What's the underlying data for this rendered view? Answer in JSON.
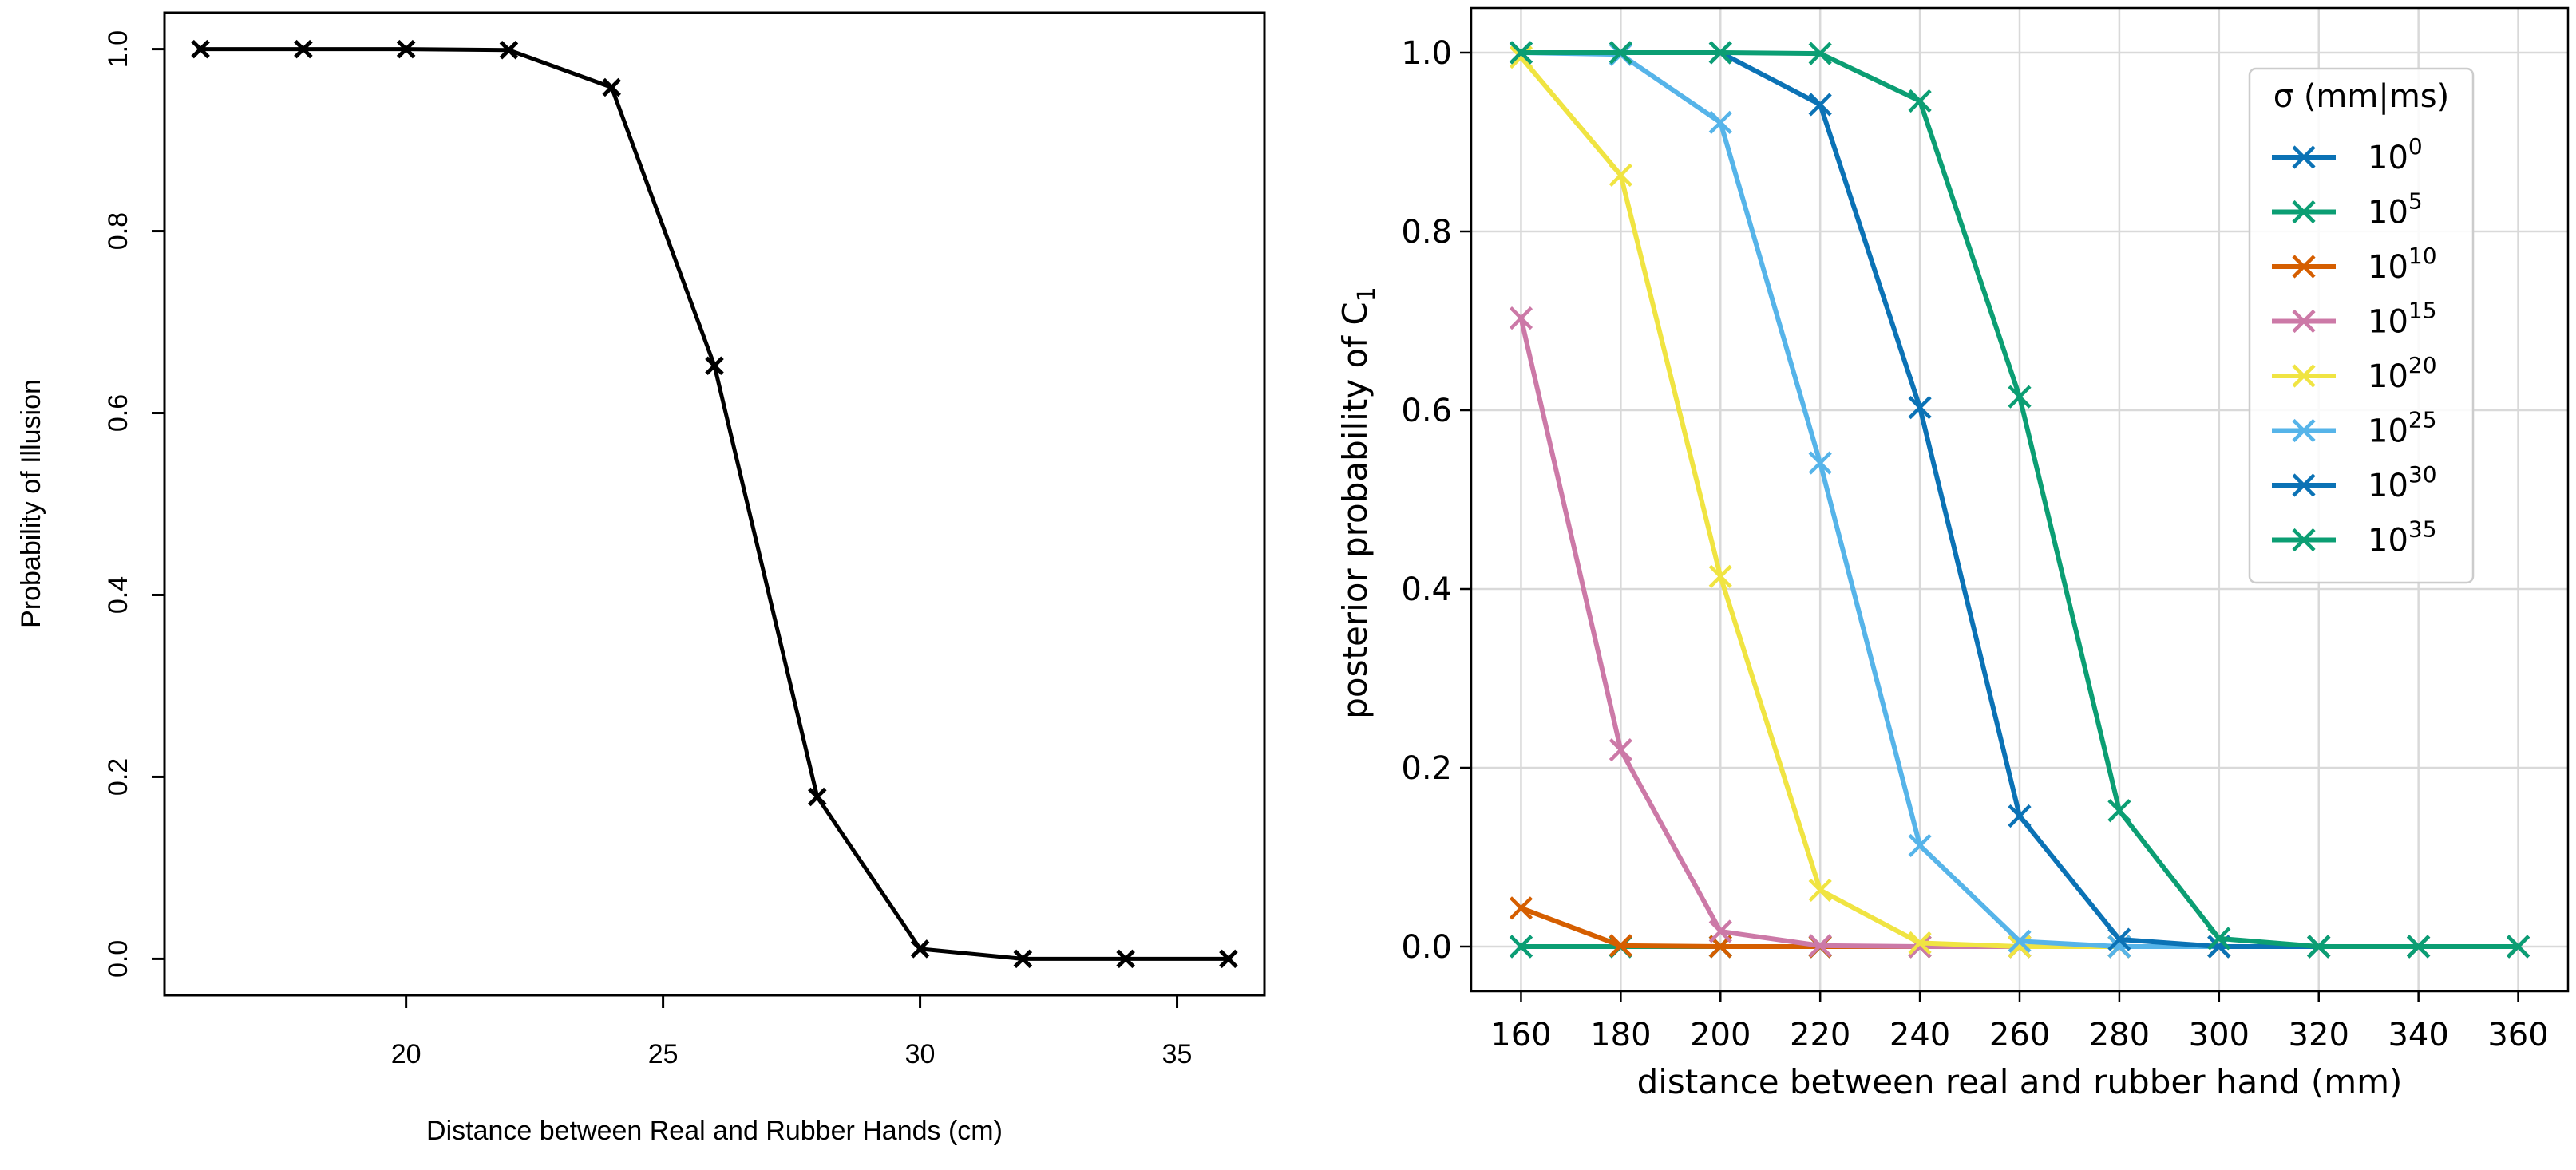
{
  "chart_data": [
    {
      "type": "line",
      "title": "",
      "xlabel": "Distance between Real and Rubber Hands (cm)",
      "ylabel": "Probability of Illusion",
      "xlim": [
        15.3,
        36.7
      ],
      "ylim": [
        -0.04,
        1.04
      ],
      "xticks": [
        "20",
        "25",
        "30",
        "35"
      ],
      "yticks": [
        "0.0",
        "0.2",
        "0.4",
        "0.6",
        "0.8",
        "1.0"
      ],
      "grid": false,
      "marker": "x",
      "color": "#000000",
      "series": [
        {
          "name": "Probability of Illusion",
          "x": [
            16,
            18,
            20,
            22,
            24,
            26,
            28,
            30,
            32,
            34,
            36
          ],
          "values": [
            1.0,
            1.0,
            1.0,
            0.999,
            0.958,
            0.652,
            0.178,
            0.011,
            0.0,
            0.0,
            0.0
          ]
        }
      ]
    },
    {
      "type": "line",
      "title": "",
      "xlabel": "distance between real and rubber hand (mm)",
      "ylabel": "posterior probability of C",
      "ylabel_subscript": "1",
      "xlim": [
        150,
        370
      ],
      "ylim": [
        -0.05,
        1.05
      ],
      "xticks": [
        "160",
        "180",
        "200",
        "220",
        "240",
        "260",
        "280",
        "300",
        "320",
        "340",
        "360"
      ],
      "yticks": [
        "0.0",
        "0.2",
        "0.4",
        "0.6",
        "0.8",
        "1.0"
      ],
      "grid": true,
      "marker": "x",
      "legend_title": "σ (mm|ms)",
      "legend_position": "top-right",
      "x": [
        160,
        180,
        200,
        220,
        240,
        260,
        280,
        300,
        320,
        340,
        360
      ],
      "series": [
        {
          "name": "10^0",
          "base": "10",
          "exp": "0",
          "color": "#0b72b5",
          "values": [
            0,
            0,
            0,
            0,
            0,
            0,
            0,
            0,
            0,
            0,
            0
          ]
        },
        {
          "name": "10^5",
          "base": "10",
          "exp": "5",
          "color": "#0b9e73",
          "values": [
            0,
            0,
            0,
            0,
            0,
            0,
            0,
            0,
            0,
            0,
            0
          ]
        },
        {
          "name": "10^10",
          "base": "10",
          "exp": "10",
          "color": "#d55e00",
          "values": [
            0.043,
            0.001,
            0,
            0,
            0,
            0,
            0,
            0,
            0,
            0,
            0
          ]
        },
        {
          "name": "10^15",
          "base": "10",
          "exp": "15",
          "color": "#cc79a7",
          "values": [
            0.703,
            0.22,
            0.017,
            0.001,
            0,
            0,
            0,
            0,
            0,
            0,
            0
          ]
        },
        {
          "name": "10^20",
          "base": "10",
          "exp": "20",
          "color": "#f0e442",
          "values": [
            0.995,
            0.863,
            0.414,
            0.063,
            0.004,
            0,
            0,
            0,
            0,
            0,
            0
          ]
        },
        {
          "name": "10^25",
          "base": "10",
          "exp": "25",
          "color": "#56b4e9",
          "values": [
            1.0,
            0.998,
            0.922,
            0.541,
            0.113,
            0.006,
            0,
            0,
            0,
            0,
            0
          ]
        },
        {
          "name": "10^30",
          "base": "10",
          "exp": "30",
          "color": "#0b72b5",
          "values": [
            1.0,
            1.0,
            1.0,
            0.942,
            0.603,
            0.146,
            0.008,
            0,
            0,
            0,
            0
          ]
        },
        {
          "name": "10^35",
          "base": "10",
          "exp": "35",
          "color": "#0b9e73",
          "values": [
            1.0,
            1.0,
            1.0,
            0.999,
            0.946,
            0.615,
            0.152,
            0.009,
            0,
            0,
            0
          ]
        }
      ]
    }
  ]
}
